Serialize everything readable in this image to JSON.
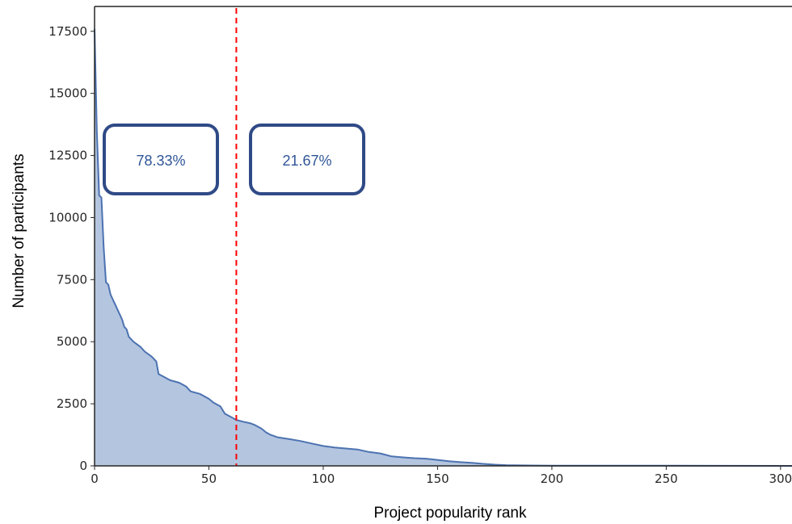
{
  "chart_data": {
    "type": "area",
    "xlabel": "Project popularity rank",
    "ylabel": "Number of participants",
    "xlim": [
      0,
      305
    ],
    "ylim": [
      0,
      18500
    ],
    "x_ticks": [
      0,
      50,
      100,
      150,
      200,
      250,
      300
    ],
    "y_ticks": [
      0,
      2500,
      5000,
      7500,
      10000,
      12500,
      15000,
      17500
    ],
    "grid": false,
    "series": [
      {
        "values_at_rank": [
          [
            0,
            17600
          ],
          [
            1,
            13500
          ],
          [
            2,
            10900
          ],
          [
            3,
            10800
          ],
          [
            4,
            8800
          ],
          [
            5,
            7400
          ],
          [
            6,
            7300
          ],
          [
            7,
            6900
          ],
          [
            8,
            6700
          ],
          [
            9,
            6500
          ],
          [
            10,
            6300
          ],
          [
            12,
            5900
          ],
          [
            13,
            5600
          ],
          [
            14,
            5500
          ],
          [
            15,
            5200
          ],
          [
            17,
            5000
          ],
          [
            20,
            4800
          ],
          [
            22,
            4600
          ],
          [
            25,
            4400
          ],
          [
            26,
            4300
          ],
          [
            27,
            4200
          ],
          [
            28,
            3700
          ],
          [
            30,
            3600
          ],
          [
            33,
            3450
          ],
          [
            37,
            3350
          ],
          [
            40,
            3200
          ],
          [
            42,
            3000
          ],
          [
            46,
            2900
          ],
          [
            49,
            2750
          ],
          [
            50,
            2700
          ],
          [
            52,
            2550
          ],
          [
            55,
            2400
          ],
          [
            57,
            2100
          ],
          [
            60,
            1950
          ],
          [
            62,
            1850
          ],
          [
            65,
            1780
          ],
          [
            68,
            1720
          ],
          [
            70,
            1650
          ],
          [
            73,
            1500
          ],
          [
            75,
            1350
          ],
          [
            77,
            1250
          ],
          [
            80,
            1150
          ],
          [
            85,
            1080
          ],
          [
            90,
            1000
          ],
          [
            95,
            900
          ],
          [
            100,
            800
          ],
          [
            105,
            740
          ],
          [
            110,
            700
          ],
          [
            115,
            660
          ],
          [
            120,
            560
          ],
          [
            125,
            500
          ],
          [
            130,
            380
          ],
          [
            135,
            340
          ],
          [
            140,
            310
          ],
          [
            145,
            290
          ],
          [
            150,
            240
          ],
          [
            155,
            190
          ],
          [
            160,
            150
          ],
          [
            165,
            120
          ],
          [
            170,
            80
          ],
          [
            175,
            50
          ],
          [
            180,
            30
          ],
          [
            190,
            15
          ],
          [
            200,
            10
          ],
          [
            250,
            5
          ],
          [
            305,
            0
          ]
        ]
      }
    ],
    "reference_line": {
      "x": 62,
      "color": "#ff0000",
      "style": "dashed"
    },
    "annotations": [
      {
        "text": "78.33%",
        "region": "left of reference line"
      },
      {
        "text": "21.67%",
        "region": "right of reference line"
      }
    ],
    "colors": {
      "line": "#4c72b0",
      "fill": "#b4c5e0",
      "annotation_border": "#2f4a86",
      "annotation_text": "#2f5597"
    }
  }
}
